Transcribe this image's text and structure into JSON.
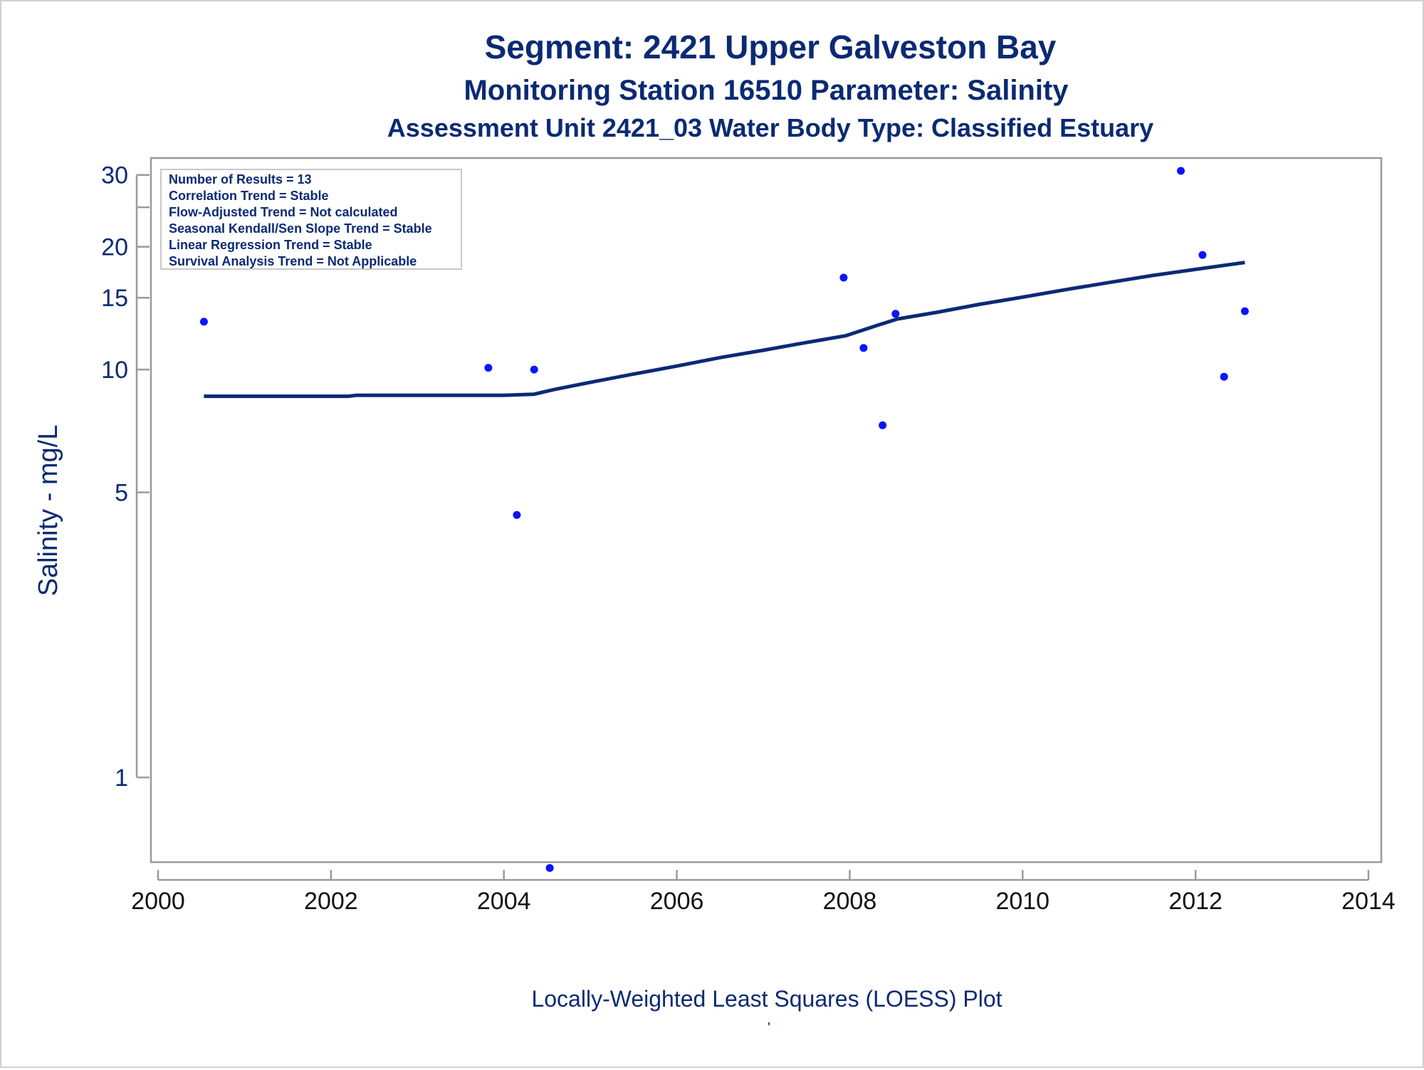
{
  "titles": {
    "line1": "Segment: 2421  Upper Galveston Bay",
    "line2": "Monitoring Station 16510 Parameter: Salinity",
    "line3": "Assessment Unit 2421_03   Water Body Type: Classified Estuary"
  },
  "stats_box": {
    "lines": [
      "Number of Results = 13",
      "Correlation Trend = Stable",
      "Flow-Adjusted Trend = Not calculated",
      "Seasonal Kendall/Sen Slope Trend = Stable",
      "Linear Regression Trend = Stable",
      "Survival Analysis Trend = Not Applicable"
    ]
  },
  "footnote": "Locally-Weighted Least Squares (LOESS) Plot",
  "colors": {
    "text": "#0a2a73",
    "points": "#0a14ff",
    "line": "#0a2a73",
    "axis": "#9a9a9a"
  },
  "chart_data": {
    "type": "scatter",
    "ylabel": "Salinity - mg/L",
    "xlabel": "",
    "y_scale": "log",
    "xlim": [
      2000,
      2014
    ],
    "ylim": [
      0.62,
      33
    ],
    "x_ticks": [
      2000,
      2002,
      2004,
      2006,
      2008,
      2010,
      2012,
      2014
    ],
    "y_ticks_labeled": [
      1,
      5,
      10,
      15,
      20,
      30
    ],
    "y_ticks_minor": [
      25
    ],
    "grid": false,
    "legend": "none",
    "series": [
      {
        "type": "scatter",
        "x": [
          2000.53,
          2003.82,
          2004.15,
          2004.35,
          2004.53,
          2007.93,
          2008.16,
          2008.38,
          2008.53,
          2011.83,
          2012.08,
          2012.33,
          2012.57
        ],
        "y": [
          13.1,
          10.1,
          4.4,
          10.0,
          0.6,
          16.8,
          11.3,
          7.3,
          13.7,
          30.7,
          19.1,
          9.6,
          13.9
        ]
      },
      {
        "type": "line",
        "x": [
          2000.53,
          2002.2,
          2002.3,
          2004.0,
          2004.35,
          2004.6,
          2005.0,
          2005.5,
          2006.0,
          2006.5,
          2007.0,
          2007.5,
          2007.95,
          2008.3,
          2008.55,
          2009.0,
          2009.5,
          2010.0,
          2010.5,
          2011.0,
          2011.5,
          2012.0,
          2012.57
        ],
        "y": [
          8.6,
          8.6,
          8.65,
          8.65,
          8.7,
          8.95,
          9.3,
          9.75,
          10.2,
          10.7,
          11.15,
          11.65,
          12.1,
          12.8,
          13.3,
          13.8,
          14.45,
          15.05,
          15.7,
          16.35,
          17.0,
          17.6,
          18.3
        ]
      }
    ]
  }
}
